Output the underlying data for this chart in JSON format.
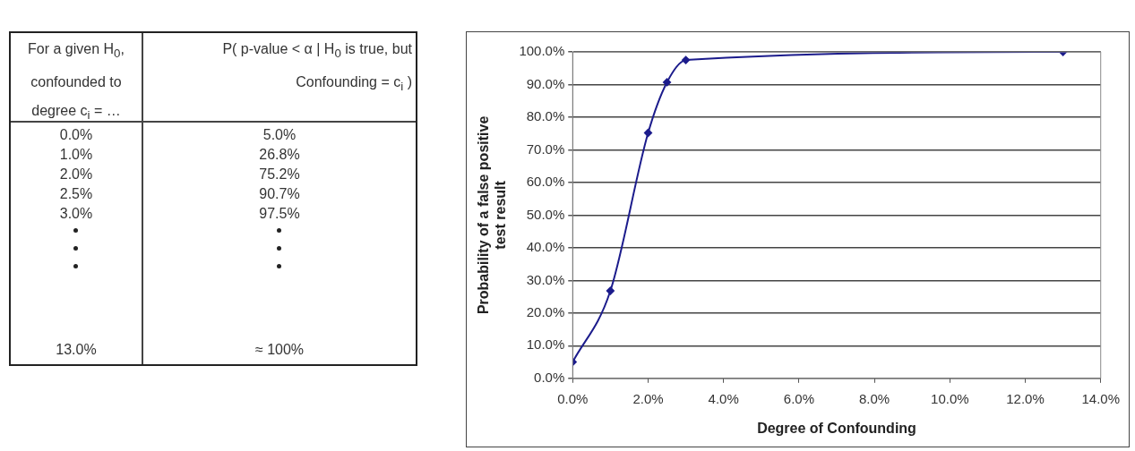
{
  "chart_data": {
    "type": "line",
    "xlabel": "Degree of Confounding",
    "ylabel": "Probability of a false positive\ntest result",
    "x": [
      0,
      1,
      2,
      2.5,
      3,
      13
    ],
    "series": [
      {
        "color": "#1c1c8c",
        "values": [
          5.0,
          26.8,
          75.2,
          90.7,
          97.5,
          100
        ]
      }
    ],
    "value_labels": [
      "5.0%",
      "26.8%",
      "75.2%",
      "90.7%",
      "97.5%",
      "≈ 100%"
    ],
    "annotations": [
      "For a given H$_{0}$,\nconfounded to\ndegree c$_{i}$ = …",
      "P( p-value < α | H$_{0}$ is true, but\nConfounding = c$_{i}$ )",
      "0.0%",
      "1.0%",
      "2.0%",
      "2.5%",
      "3.0%",
      "13.0%"
    ],
    "xlim": [
      0,
      14
    ],
    "xticks": [
      {
        "value": 0,
        "label": "0.0%"
      },
      {
        "value": 2,
        "label": "2.0%"
      },
      {
        "value": 4,
        "label": "4.0%"
      },
      {
        "value": 6,
        "label": "6.0%"
      },
      {
        "value": 8,
        "label": "8.0%"
      },
      {
        "value": 10,
        "label": "10.0%"
      },
      {
        "value": 12,
        "label": "12.0%"
      },
      {
        "value": 14,
        "label": "14.0%"
      }
    ],
    "ylim": [
      0,
      100
    ],
    "yticks": [
      {
        "value": 0,
        "label": "0.0%"
      },
      {
        "value": 10,
        "label": "10.0%"
      },
      {
        "value": 20,
        "label": "20.0%"
      },
      {
        "value": 30,
        "label": "30.0%"
      },
      {
        "value": 40,
        "label": "40.0%"
      },
      {
        "value": 50,
        "label": "50.0%"
      },
      {
        "value": 60,
        "label": "60.0%"
      },
      {
        "value": 70,
        "label": "70.0%"
      },
      {
        "value": 80,
        "label": "80.0%"
      },
      {
        "value": 90,
        "label": "90.0%"
      },
      {
        "value": 100,
        "label": "100.0%"
      }
    ],
    "grid": "y",
    "marker": "diamond",
    "line_style": "solid"
  }
}
